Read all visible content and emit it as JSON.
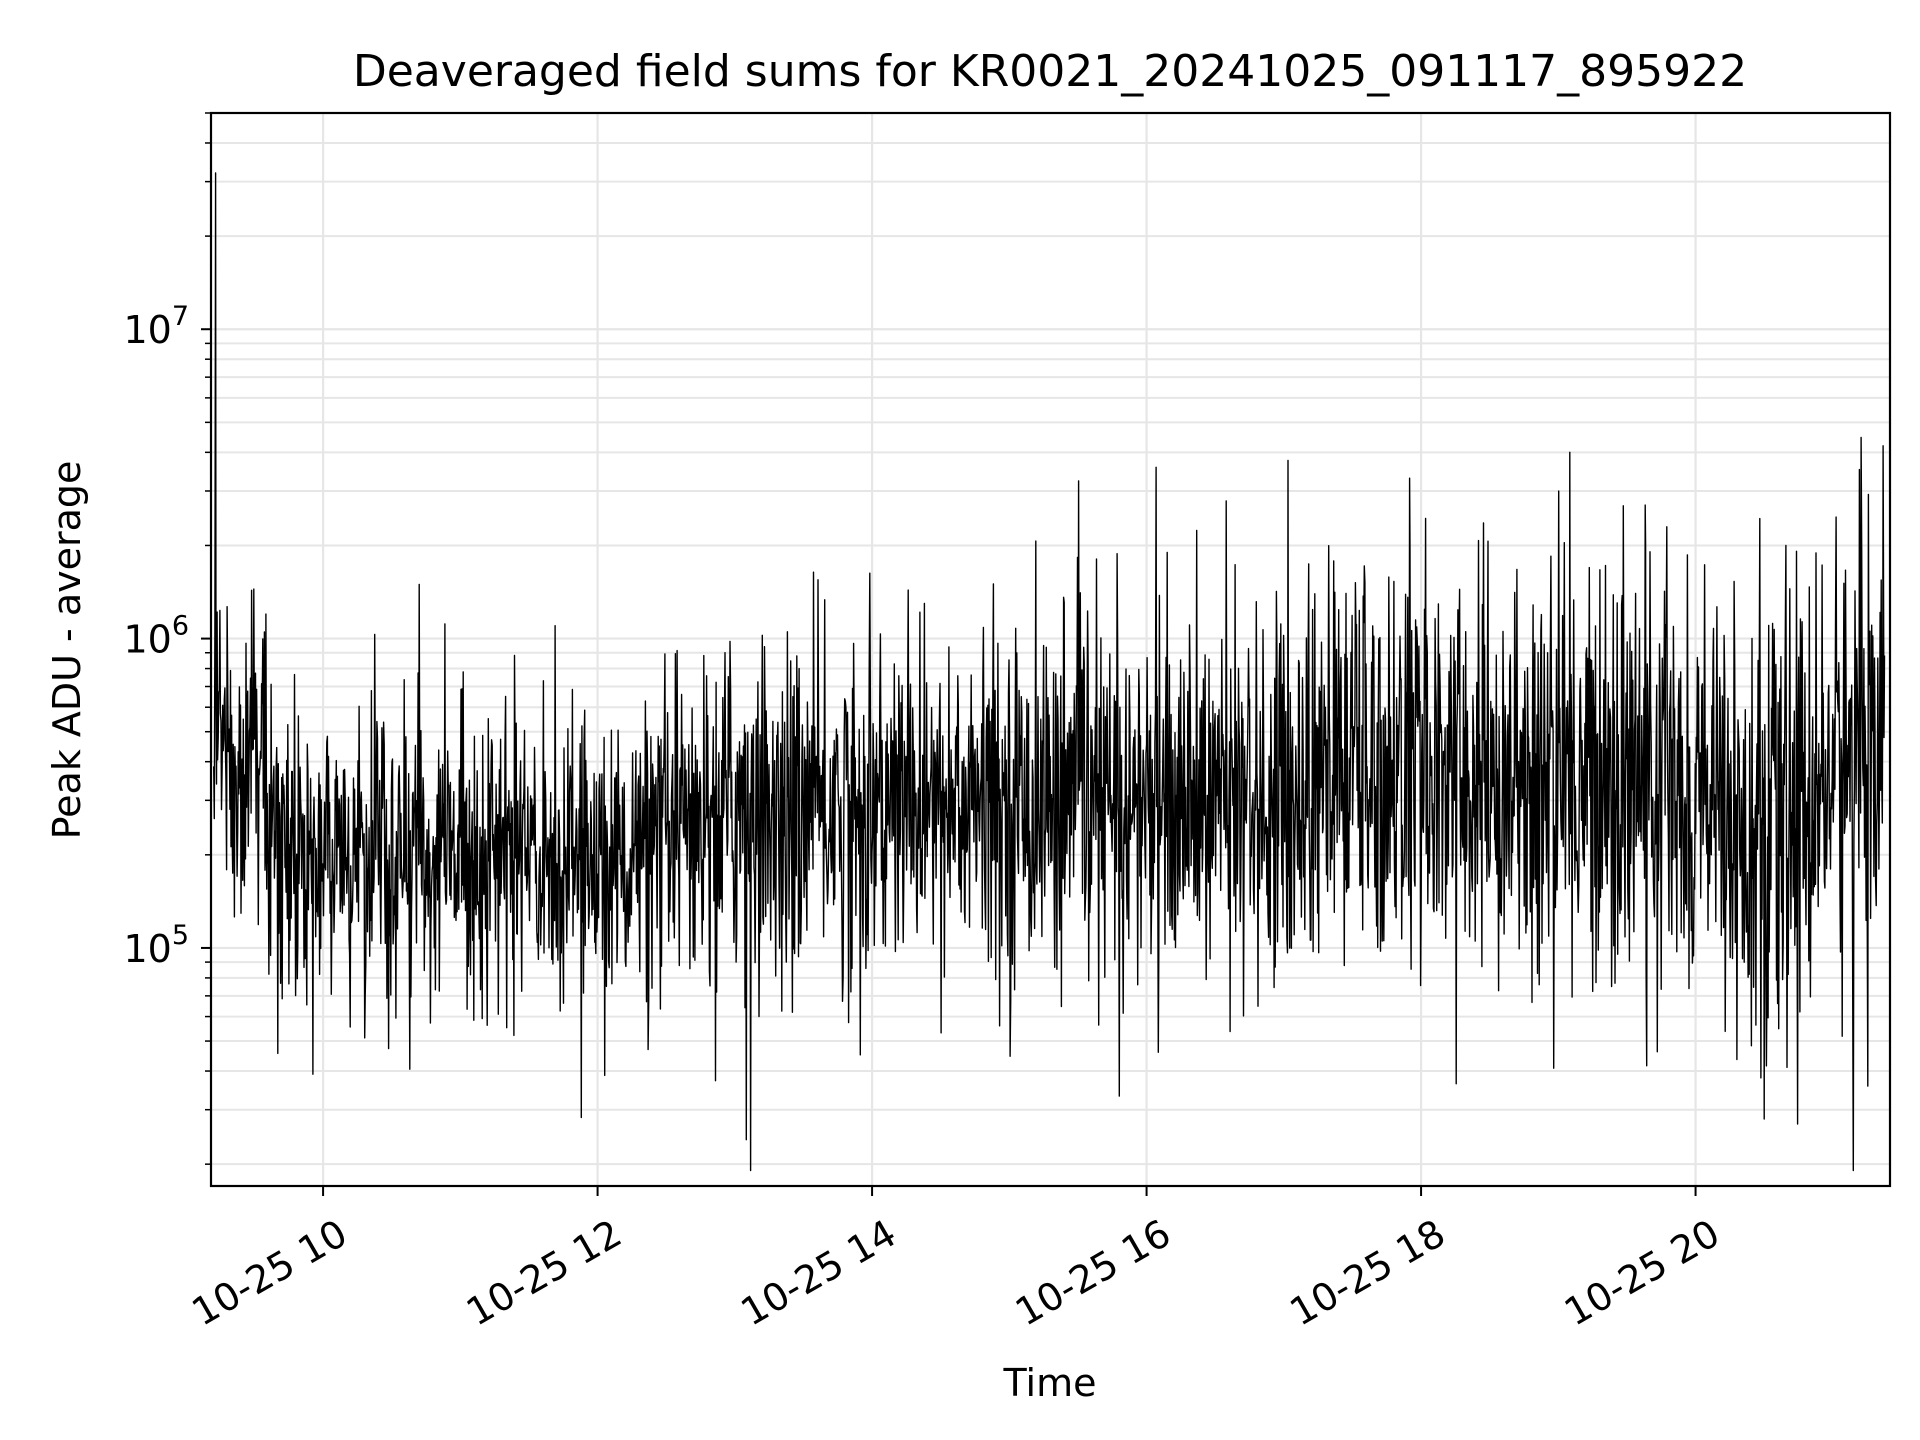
{
  "chart_data": {
    "type": "line",
    "title": "Deaveraged field sums for KR0021_20241025_091117_895922",
    "xlabel": "Time",
    "ylabel": "Peak ADU - average",
    "yscale": "log",
    "ylim": [
      17000,
      50000000
    ],
    "xlim": [
      "2024-10-25 09:11",
      "2024-10-25 21:25"
    ],
    "grid": true,
    "x_ticks": [
      {
        "label": "10-25 10",
        "value": "2024-10-25 10:00"
      },
      {
        "label": "10-25 12",
        "value": "2024-10-25 12:00"
      },
      {
        "label": "10-25 14",
        "value": "2024-10-25 14:00"
      },
      {
        "label": "10-25 16",
        "value": "2024-10-25 16:00"
      },
      {
        "label": "10-25 18",
        "value": "2024-10-25 18:00"
      },
      {
        "label": "10-25 20",
        "value": "2024-10-25 20:00"
      }
    ],
    "y_ticks": [
      {
        "base": "10",
        "exp": "5",
        "value": 100000
      },
      {
        "base": "10",
        "exp": "6",
        "value": 1000000
      },
      {
        "base": "10",
        "exp": "7",
        "value": 10000000
      }
    ],
    "series": [
      {
        "color": "#000000",
        "x": [
          "2024-10-25 09:12",
          "2024-10-25 09:15",
          "2024-10-25 09:20",
          "2024-10-25 09:25",
          "2024-10-25 09:30",
          "2024-10-25 09:35",
          "2024-10-25 09:40",
          "2024-10-25 09:45",
          "2024-10-25 10:00",
          "2024-10-25 10:30",
          "2024-10-25 11:00",
          "2024-10-25 11:30",
          "2024-10-25 12:00",
          "2024-10-25 12:30",
          "2024-10-25 12:45",
          "2024-10-25 13:00",
          "2024-10-25 13:30",
          "2024-10-25 14:00",
          "2024-10-25 14:30",
          "2024-10-25 15:00",
          "2024-10-25 15:30",
          "2024-10-25 16:00",
          "2024-10-25 16:30",
          "2024-10-25 17:00",
          "2024-10-25 17:30",
          "2024-10-25 18:00",
          "2024-10-25 18:30",
          "2024-10-25 19:00",
          "2024-10-25 19:30",
          "2024-10-25 20:00",
          "2024-10-25 20:30",
          "2024-10-25 21:00",
          "2024-10-25 21:25"
        ],
        "y": [
          450000,
          600000,
          330000,
          280000,
          620000,
          250000,
          230000,
          210000,
          200000,
          190000,
          210000,
          200000,
          190000,
          210000,
          250000,
          290000,
          280000,
          280000,
          300000,
          290000,
          300000,
          290000,
          300000,
          300000,
          400000,
          380000,
          330000,
          360000,
          350000,
          330000,
          200000,
          380000,
          450000
        ]
      }
    ],
    "outliers": [
      {
        "x": "2024-10-25 09:13",
        "y": 32000000
      },
      {
        "x": "2024-10-25 09:35",
        "y": 1200000
      },
      {
        "x": "2024-10-25 13:05",
        "y": 24000
      },
      {
        "x": "2024-10-25 17:55",
        "y": 3300000
      },
      {
        "x": "2024-10-25 19:05",
        "y": 4000000
      },
      {
        "x": "2024-10-25 19:38",
        "y": 2700000
      },
      {
        "x": "2024-10-25 20:30",
        "y": 28000
      },
      {
        "x": "2024-10-25 21:22",
        "y": 4200000
      }
    ]
  }
}
